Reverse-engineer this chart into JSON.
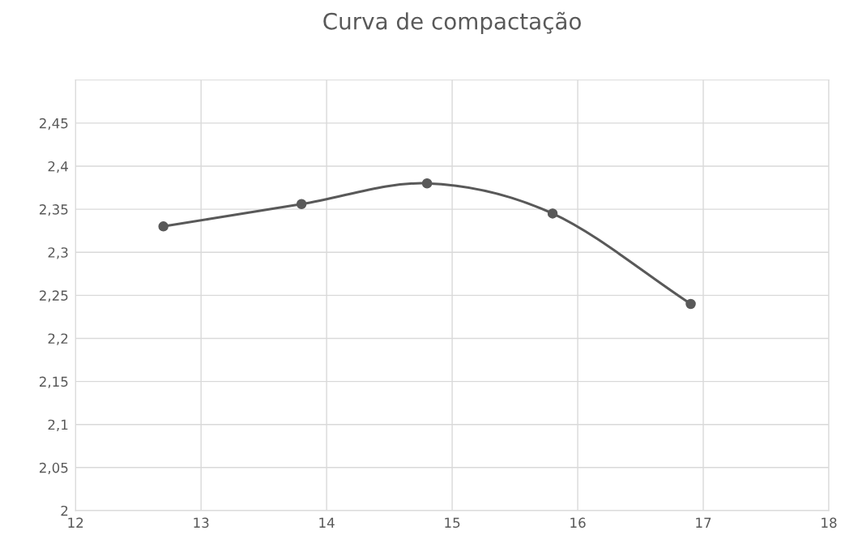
{
  "chart_data": {
    "type": "line",
    "title": "Curva de compactação",
    "x": [
      12.7,
      13.8,
      14.8,
      15.8,
      16.9
    ],
    "series": [
      {
        "color": "#595959",
        "values": [
          2.33,
          2.356,
          2.38,
          2.345,
          2.24
        ]
      }
    ],
    "xlim": [
      12,
      18
    ],
    "xticks": [
      12,
      13,
      14,
      15,
      16,
      17,
      18
    ],
    "ylim": [
      2,
      2.5
    ],
    "yticks": [
      2,
      {
        "value": 2.05,
        "label": "2,05"
      },
      {
        "value": 2.1,
        "label": "2,1"
      },
      {
        "value": 2.15,
        "label": "2,15"
      },
      {
        "value": 2.2,
        "label": "2,2"
      },
      {
        "value": 2.25,
        "label": "2,25"
      },
      {
        "value": 2.3,
        "label": "2,3"
      },
      {
        "value": 2.35,
        "label": "2,35"
      },
      {
        "value": 2.4,
        "label": "2,4"
      },
      {
        "value": 2.45,
        "label": "2,45"
      }
    ],
    "grid": true,
    "marker": "circle",
    "line_style": "solid",
    "legend": false
  }
}
